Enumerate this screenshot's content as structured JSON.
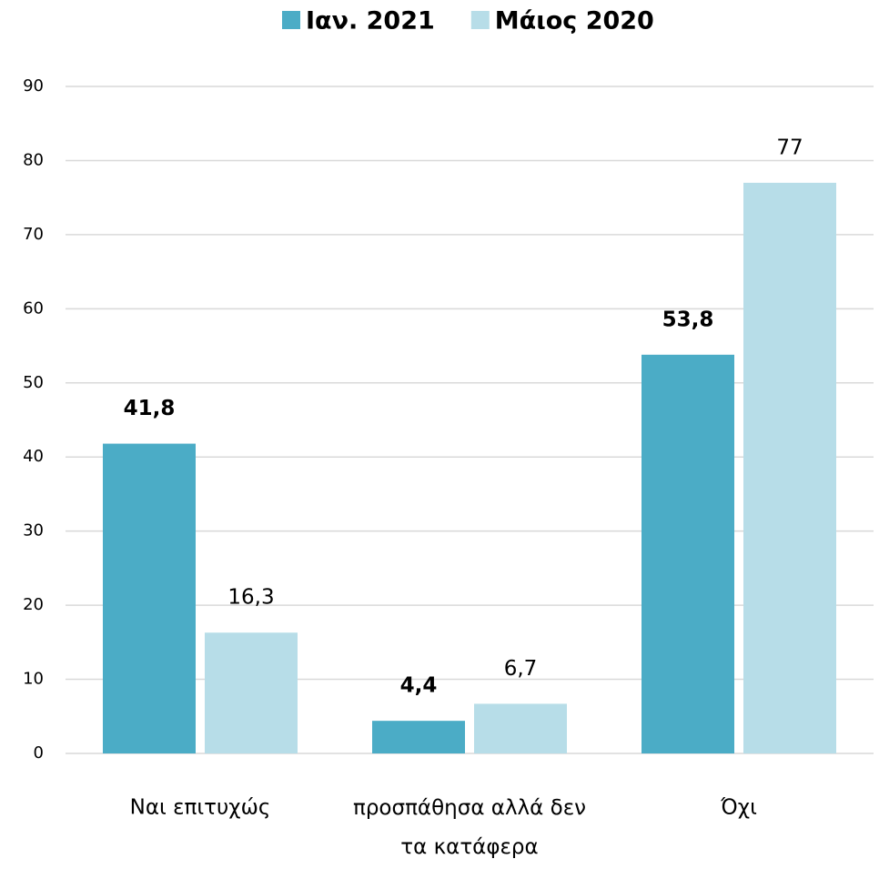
{
  "chart_data": {
    "type": "bar",
    "categories": [
      "Ναι επιτυχώς",
      "προσπάθησα αλλά δεν τα κατάφερα",
      "Όχι"
    ],
    "series": [
      {
        "name": "Ιαν. 2021",
        "color": "#4bacc6",
        "values": [
          41.8,
          4.4,
          53.8
        ],
        "value_labels": [
          "41,8",
          "4,4",
          "53,8"
        ]
      },
      {
        "name": "Μάιος 2020",
        "color": "#b7dde8",
        "values": [
          16.3,
          6.7,
          77
        ],
        "value_labels": [
          "16,3",
          "6,7",
          "77"
        ]
      }
    ],
    "ylim": [
      0,
      90
    ],
    "yticks": [
      0,
      10,
      20,
      30,
      40,
      50,
      60,
      70,
      80,
      90
    ],
    "grid": true,
    "legend": "top"
  }
}
